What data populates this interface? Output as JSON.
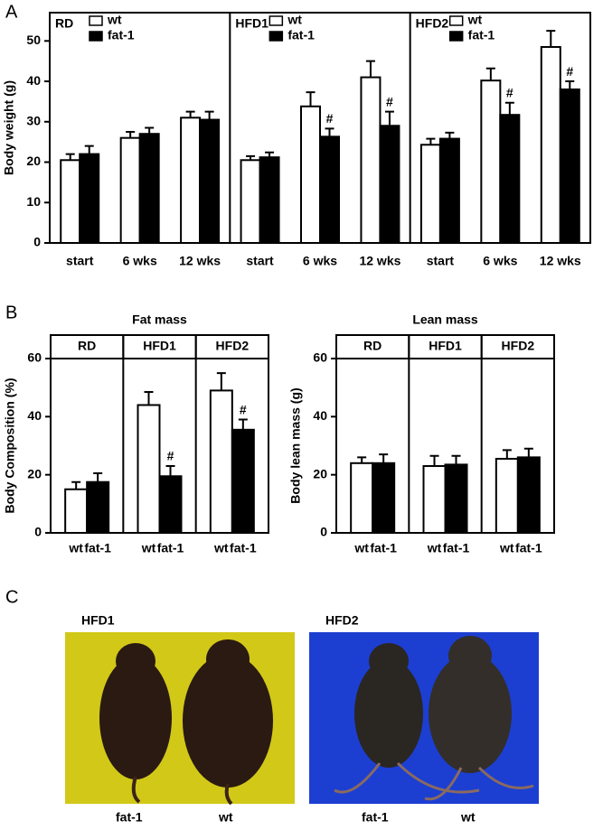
{
  "chart_data": [
    {
      "type": "bar",
      "panel": "A",
      "y_label": "Body weight (g)",
      "ylim": [
        0,
        57
      ],
      "yticks": [
        0,
        10,
        20,
        30,
        40,
        50
      ],
      "facets": [
        "RD",
        "HFD1",
        "HFD2"
      ],
      "categories": [
        "start",
        "6 wks",
        "12 wks"
      ],
      "series": [
        {
          "name": "wt",
          "color": "#ffffff",
          "values": [
            [
              20.5,
              26,
              31
            ],
            [
              20.5,
              33.8,
              41
            ],
            [
              24.3,
              40.2,
              48.5
            ]
          ],
          "errors": [
            [
              1.5,
              1.5,
              1.5
            ],
            [
              1,
              3.5,
              4
            ],
            [
              1.5,
              3,
              4
            ]
          ]
        },
        {
          "name": "fat-1",
          "color": "#000000",
          "values": [
            [
              22,
              27,
              30.5
            ],
            [
              21.2,
              26.3,
              29
            ],
            [
              25.8,
              31.7,
              38
            ]
          ],
          "errors": [
            [
              2,
              1.5,
              2
            ],
            [
              1.2,
              2,
              3.5
            ],
            [
              1.5,
              3,
              2
            ]
          ]
        }
      ],
      "annotations": [
        {
          "text": "#",
          "facet": 1,
          "category": 1,
          "series": 1
        },
        {
          "text": "#",
          "facet": 1,
          "category": 2,
          "series": 1
        },
        {
          "text": "#",
          "facet": 2,
          "category": 1,
          "series": 1
        },
        {
          "text": "#",
          "facet": 2,
          "category": 2,
          "series": 1
        }
      ]
    },
    {
      "type": "bar",
      "panel": "B",
      "title": "Fat mass",
      "y_label": "Body Composition (%)",
      "ylim": [
        0,
        60
      ],
      "yticks": [
        0,
        20,
        40,
        60
      ],
      "facets": [
        "RD",
        "HFD1",
        "HFD2"
      ],
      "categories": [
        "wt",
        "fat-1"
      ],
      "colors": [
        "#ffffff",
        "#000000"
      ],
      "values": [
        [
          15,
          17.5
        ],
        [
          44,
          19.5
        ],
        [
          49,
          35.5
        ]
      ],
      "errors": [
        [
          2.5,
          3
        ],
        [
          4.5,
          3.5
        ],
        [
          6,
          3.5
        ]
      ],
      "annotations": [
        {
          "text": "#",
          "facet": 1,
          "category": 1
        },
        {
          "text": "#",
          "facet": 2,
          "category": 1
        }
      ]
    },
    {
      "type": "bar",
      "title": "Lean mass",
      "y_label": "Body lean mass (g)",
      "ylim": [
        0,
        60
      ],
      "yticks": [
        0,
        20,
        40,
        60
      ],
      "facets": [
        "RD",
        "HFD1",
        "HFD2"
      ],
      "categories": [
        "wt",
        "fat-1"
      ],
      "colors": [
        "#ffffff",
        "#000000"
      ],
      "values": [
        [
          24,
          24
        ],
        [
          23,
          23.5
        ],
        [
          25.5,
          26
        ]
      ],
      "errors": [
        [
          2,
          3
        ],
        [
          3.5,
          3
        ],
        [
          3,
          3
        ]
      ]
    }
  ],
  "photos": {
    "panel": "C",
    "items": [
      {
        "title": "HFD1",
        "labels": [
          "fat-1",
          "wt"
        ]
      },
      {
        "title": "HFD2",
        "labels": [
          "fat-1",
          "wt"
        ]
      }
    ]
  }
}
